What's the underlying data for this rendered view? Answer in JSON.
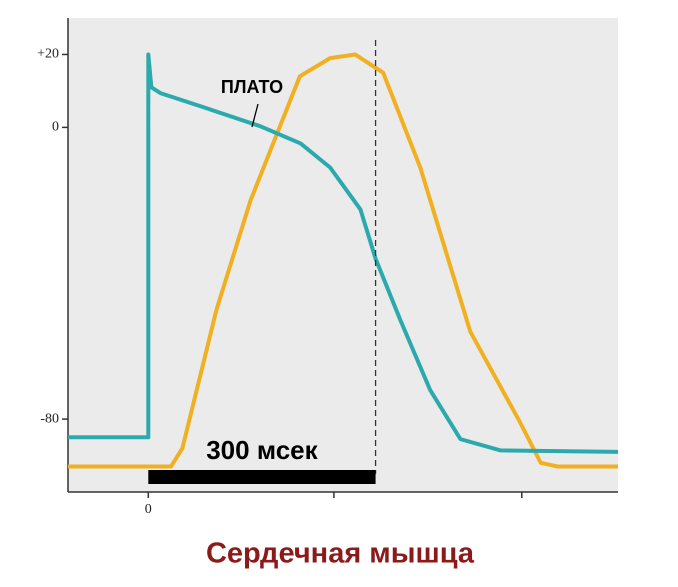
{
  "chart_data": {
    "type": "line",
    "title": "Сердечная мышца",
    "annotation": "ПЛАТО",
    "xlim": [
      -106,
      620
    ],
    "ylim": [
      -100,
      30
    ],
    "xticks": [
      0,
      {
        "value": 245,
        "label": null
      },
      {
        "value": 493,
        "label": null
      }
    ],
    "yticks": [
      {
        "value": 20,
        "label": "+20"
      },
      0,
      -80
    ],
    "vline": 300,
    "scale_bar": {
      "start": 0,
      "length": 300,
      "label": "300 мсек"
    },
    "series": [
      {
        "color": "#2ba9ad",
        "x": [
          -106,
          0,
          0,
          4,
          16,
          69,
          148,
          201,
          240,
          280,
          300,
          333,
          372,
          412,
          465,
          620
        ],
        "values": [
          -85,
          -85,
          20,
          11,
          9.4,
          5.8,
          0.3,
          -4.4,
          -11,
          -22.5,
          -36,
          -53,
          -72,
          -85.5,
          -88.6,
          -89
        ]
      },
      {
        "color": "#f0b022",
        "x": [
          -106,
          30,
          45,
          90,
          135,
          200,
          240,
          273,
          310,
          359,
          425,
          491,
          518,
          540,
          620
        ],
        "values": [
          -93,
          -93,
          -88,
          -50,
          -20,
          14,
          19,
          20,
          15,
          -11,
          -56,
          -81,
          -92,
          -93,
          -93
        ]
      }
    ]
  }
}
